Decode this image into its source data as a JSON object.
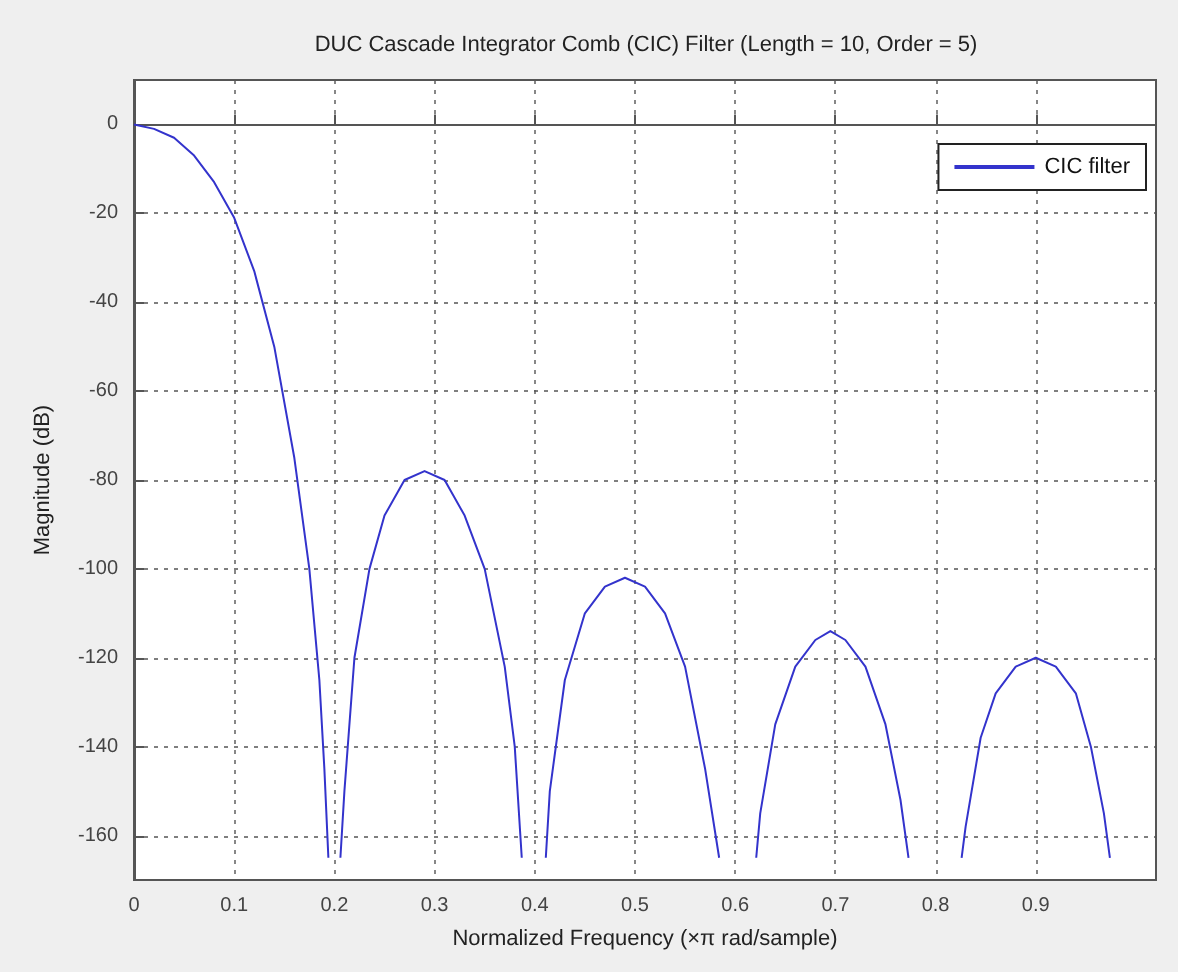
{
  "chart_data": {
    "type": "line",
    "title": "DUC Cascade Integrator Comb (CIC) Filter (Length = 10, Order = 5)",
    "xlabel": "Normalized Frequency (×π rad/sample)",
    "ylabel": "Magnitude (dB)",
    "series": [
      {
        "name": "CIC filter",
        "color": "#3333cc",
        "x": [
          0,
          0.02,
          0.04,
          0.06,
          0.08,
          0.1,
          0.12,
          0.14,
          0.16,
          0.175,
          0.185,
          0.19,
          0.194,
          0.2,
          0.206,
          0.21,
          0.22,
          0.235,
          0.25,
          0.27,
          0.29,
          0.31,
          0.33,
          0.35,
          0.37,
          0.38,
          0.387,
          0.4,
          0.411,
          0.415,
          0.43,
          0.45,
          0.47,
          0.49,
          0.51,
          0.53,
          0.55,
          0.57,
          0.584,
          0.6,
          0.621,
          0.625,
          0.64,
          0.66,
          0.68,
          0.695,
          0.71,
          0.73,
          0.75,
          0.765,
          0.773,
          0.8,
          0.826,
          0.83,
          0.845,
          0.86,
          0.88,
          0.9,
          0.92,
          0.94,
          0.955,
          0.968,
          0.974
        ],
        "values": [
          0,
          -1,
          -3,
          -7,
          -13,
          -21,
          -33,
          -50,
          -75,
          -100,
          -125,
          -145,
          -165,
          null,
          -165,
          -150,
          -120,
          -100,
          -88,
          -80,
          -78,
          -80,
          -88,
          -100,
          -122,
          -140,
          -165,
          null,
          -165,
          -150,
          -125,
          -110,
          -104,
          -102,
          -104,
          -110,
          -122,
          -145,
          -165,
          null,
          -165,
          -155,
          -135,
          -122,
          -116,
          -114,
          -116,
          -122,
          -135,
          -152,
          -165,
          null,
          -165,
          -158,
          -138,
          -128,
          -122,
          -120,
          -122,
          -128,
          -140,
          -155,
          -165
        ]
      }
    ],
    "xlim": [
      0,
      1.02
    ],
    "xticks": [
      0,
      0.1,
      0.2,
      0.3,
      0.4,
      0.5,
      0.6,
      0.7,
      0.8,
      0.9
    ],
    "ylim": [
      -170,
      10
    ],
    "yticks": [
      0,
      -20,
      -40,
      -60,
      -80,
      -100,
      -120,
      -140,
      -160
    ],
    "grid": true,
    "legend": "top right",
    "marker": "none",
    "line_style": "solid"
  }
}
